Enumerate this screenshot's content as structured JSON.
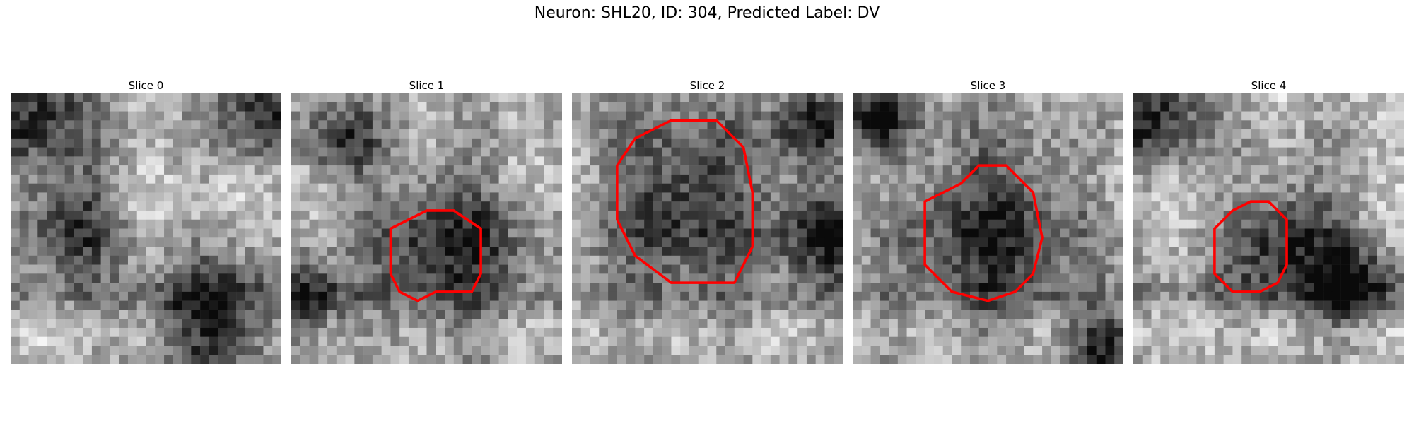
{
  "figure": {
    "title": "Neuron: SHL20, ID: 304, Predicted Label: DV"
  },
  "panels": [
    {
      "title": "Slice 0",
      "seed": 11,
      "blobs": [
        [
          2,
          1,
          5
        ],
        [
          28,
          1,
          4
        ],
        [
          22,
          25,
          5
        ],
        [
          6,
          14,
          4
        ]
      ],
      "contour": []
    },
    {
      "title": "Slice 1",
      "seed": 23,
      "blobs": [
        [
          17,
          16,
          6
        ],
        [
          5,
          5,
          3
        ],
        [
          1,
          22,
          3
        ]
      ],
      "contour": [
        [
          13,
          14
        ],
        [
          15,
          13
        ],
        [
          18,
          13
        ],
        [
          21,
          15
        ],
        [
          21,
          20
        ],
        [
          20,
          22
        ],
        [
          16,
          22
        ],
        [
          14,
          23
        ],
        [
          12,
          22
        ],
        [
          11,
          20
        ],
        [
          11,
          15
        ]
      ]
    },
    {
      "title": "Slice 2",
      "seed": 37,
      "blobs": [
        [
          12,
          11,
          7
        ],
        [
          28,
          15,
          4
        ],
        [
          26,
          3,
          3
        ]
      ],
      "contour": [
        [
          9,
          4
        ],
        [
          11,
          3
        ],
        [
          16,
          3
        ],
        [
          19,
          6
        ],
        [
          20,
          11
        ],
        [
          20,
          17
        ],
        [
          18,
          21
        ],
        [
          11,
          21
        ],
        [
          7,
          18
        ],
        [
          5,
          14
        ],
        [
          5,
          8
        ],
        [
          7,
          5
        ]
      ]
    },
    {
      "title": "Slice 3",
      "seed": 51,
      "blobs": [
        [
          15,
          14,
          7
        ],
        [
          2,
          2,
          3
        ],
        [
          28,
          28,
          3
        ]
      ],
      "contour": [
        [
          12,
          10
        ],
        [
          14,
          8
        ],
        [
          17,
          8
        ],
        [
          20,
          11
        ],
        [
          21,
          16
        ],
        [
          20,
          20
        ],
        [
          18,
          22
        ],
        [
          15,
          23
        ],
        [
          11,
          22
        ],
        [
          8,
          19
        ],
        [
          8,
          12
        ]
      ]
    },
    {
      "title": "Slice 4",
      "seed": 67,
      "blobs": [
        [
          2,
          2,
          4
        ],
        [
          17,
          16,
          5
        ],
        [
          24,
          21,
          3
        ]
      ],
      "contour": [
        [
          11,
          13
        ],
        [
          13,
          12
        ],
        [
          15,
          12
        ],
        [
          17,
          14
        ],
        [
          17,
          19
        ],
        [
          16,
          21
        ],
        [
          14,
          22
        ],
        [
          11,
          22
        ],
        [
          9,
          20
        ],
        [
          9,
          15
        ]
      ]
    }
  ],
  "colors": {
    "contour": "#ff0000",
    "background": "#ffffff"
  }
}
